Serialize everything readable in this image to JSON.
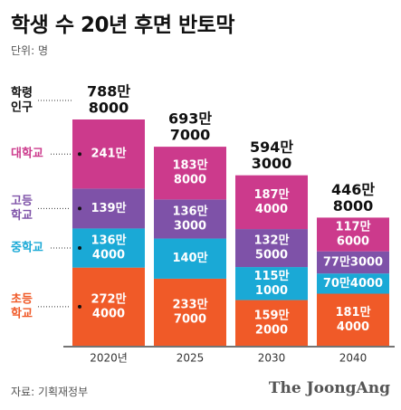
{
  "header": {
    "title": "학생 수 20년 후면 반토막",
    "unit": "단위: 명"
  },
  "footer": {
    "source": "자료: 기획재정부",
    "brand": "The JoongAng"
  },
  "chart_data": {
    "type": "bar",
    "stacked": true,
    "categories": [
      "2020년",
      "2025",
      "2030",
      "2040"
    ],
    "total_series_label": [
      "학령",
      "인구"
    ],
    "totals": [
      7888000,
      6937000,
      5943000,
      4468000
    ],
    "total_labels": [
      [
        "788만",
        "8000"
      ],
      [
        "693만",
        "7000"
      ],
      [
        "594만",
        "3000"
      ],
      [
        "446만",
        "8000"
      ]
    ],
    "series": [
      {
        "name": [
          "초등",
          "학교"
        ],
        "color": "#f05a28",
        "values": [
          2724000,
          2337000,
          1592000,
          1814000
        ],
        "labels": [
          [
            "272만",
            "4000"
          ],
          [
            "233만",
            "7000"
          ],
          [
            "159만",
            "2000"
          ],
          [
            "181만",
            "4000"
          ]
        ]
      },
      {
        "name": [
          "중학교"
        ],
        "color": "#1aa9d6",
        "values": [
          1364000,
          1400000,
          1151000,
          704000
        ],
        "labels": [
          [
            "136만",
            "4000"
          ],
          [
            "140만"
          ],
          [
            "115만",
            "1000"
          ],
          [
            "70만4000"
          ]
        ]
      },
      {
        "name": [
          "고등",
          "학교"
        ],
        "color": "#7e52a8",
        "values": [
          1390000,
          1363000,
          1325000,
          773000
        ],
        "labels": [
          [
            "139만"
          ],
          [
            "136만",
            "3000"
          ],
          [
            "132만",
            "5000"
          ],
          [
            "77만3000"
          ]
        ]
      },
      {
        "name": [
          "대학교"
        ],
        "color": "#cc3a8c",
        "values": [
          2410000,
          1838000,
          1874000,
          1176000
        ],
        "labels": [
          [
            "241만"
          ],
          [
            "183만",
            "8000"
          ],
          [
            "187만",
            "4000"
          ],
          [
            "117만",
            "6000"
          ]
        ]
      }
    ],
    "ylim": [
      0,
      7888000
    ],
    "grid": false,
    "legend": "left"
  }
}
